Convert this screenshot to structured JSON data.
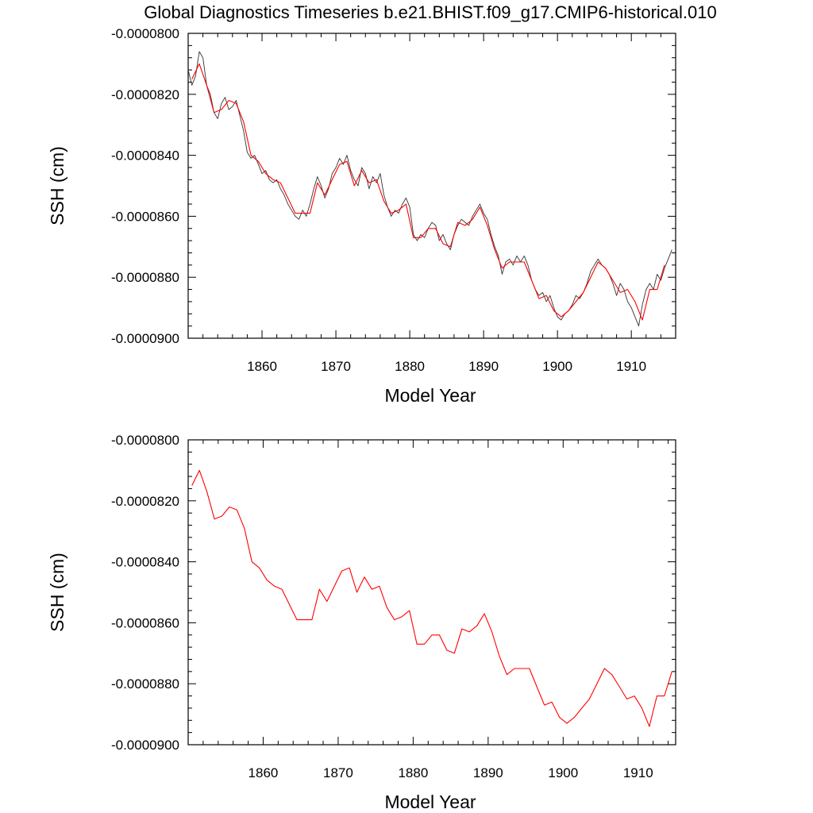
{
  "title": "Global Diagnostics Timeseries b.e21.BHIST.f09_g17.CMIP6-historical.010",
  "colors": {
    "monthly": "#333333",
    "annual": "#ff0000",
    "frame": "#000000"
  },
  "chart_data": [
    {
      "type": "line",
      "xlabel": "Model Year",
      "ylabel": "SSH (cm)",
      "xlim": [
        1850,
        1916
      ],
      "ylim": [
        -9e-05,
        -8e-05
      ],
      "x_ticks": [
        1860,
        1870,
        1880,
        1890,
        1900,
        1910
      ],
      "x_tick_labels": [
        "1860",
        "1870",
        "1880",
        "1890",
        "1900",
        "1910"
      ],
      "y_ticks": [
        -8e-05,
        -8.2e-05,
        -8.4e-05,
        -8.6e-05,
        -8.8e-05,
        -9e-05
      ],
      "y_tick_labels": [
        "-0.0000800",
        "-0.0000820",
        "-0.0000840",
        "-0.0000860",
        "-0.0000880",
        "-0.0000900"
      ],
      "grid": false,
      "series": [
        {
          "role": "monthly",
          "color": "#333333",
          "x": [
            1850.0,
            1850.5,
            1851.0,
            1851.5,
            1852.0,
            1852.5,
            1853.0,
            1853.5,
            1854.0,
            1854.5,
            1855.0,
            1855.5,
            1856.0,
            1856.5,
            1857.0,
            1857.5,
            1858.0,
            1858.5,
            1859.0,
            1859.5,
            1860.0,
            1860.5,
            1861.0,
            1861.5,
            1862.0,
            1862.5,
            1863.0,
            1863.5,
            1864.0,
            1864.5,
            1865.0,
            1865.5,
            1866.0,
            1866.5,
            1867.0,
            1867.5,
            1868.0,
            1868.5,
            1869.0,
            1869.5,
            1870.0,
            1870.5,
            1871.0,
            1871.5,
            1872.0,
            1872.5,
            1873.0,
            1873.5,
            1874.0,
            1874.5,
            1875.0,
            1875.5,
            1876.0,
            1876.5,
            1877.0,
            1877.5,
            1878.0,
            1878.5,
            1879.0,
            1879.5,
            1880.0,
            1880.5,
            1881.0,
            1881.5,
            1882.0,
            1882.5,
            1883.0,
            1883.5,
            1884.0,
            1884.5,
            1885.0,
            1885.5,
            1886.0,
            1886.5,
            1887.0,
            1887.5,
            1888.0,
            1888.5,
            1889.0,
            1889.5,
            1890.0,
            1890.5,
            1891.0,
            1891.5,
            1892.0,
            1892.5,
            1893.0,
            1893.5,
            1894.0,
            1894.5,
            1895.0,
            1895.5,
            1896.0,
            1896.5,
            1897.0,
            1897.5,
            1898.0,
            1898.5,
            1899.0,
            1899.5,
            1900.0,
            1900.5,
            1901.0,
            1901.5,
            1902.0,
            1902.5,
            1903.0,
            1903.5,
            1904.0,
            1904.5,
            1905.0,
            1905.5,
            1906.0,
            1906.5,
            1907.0,
            1907.5,
            1908.0,
            1908.5,
            1909.0,
            1909.5,
            1910.0,
            1910.5,
            1911.0,
            1911.5,
            1912.0,
            1912.5,
            1913.0,
            1913.5,
            1914.0,
            1914.5,
            1915.0,
            1915.5
          ],
          "values": [
            -8.12e-05,
            -8.17e-05,
            -8.14e-05,
            -8.06e-05,
            -8.08e-05,
            -8.17e-05,
            -8.2e-05,
            -8.26e-05,
            -8.28e-05,
            -8.23e-05,
            -8.21e-05,
            -8.25e-05,
            -8.24e-05,
            -8.22e-05,
            -8.27e-05,
            -8.32e-05,
            -8.39e-05,
            -8.41e-05,
            -8.4e-05,
            -8.43e-05,
            -8.46e-05,
            -8.45e-05,
            -8.48e-05,
            -8.49e-05,
            -8.48e-05,
            -8.51e-05,
            -8.53e-05,
            -8.56e-05,
            -8.58e-05,
            -8.6e-05,
            -8.61e-05,
            -8.58e-05,
            -8.6e-05,
            -8.56e-05,
            -8.51e-05,
            -8.47e-05,
            -8.5e-05,
            -8.54e-05,
            -8.51e-05,
            -8.46e-05,
            -8.44e-05,
            -8.41e-05,
            -8.43e-05,
            -8.4e-05,
            -8.45e-05,
            -8.48e-05,
            -8.5e-05,
            -8.44e-05,
            -8.46e-05,
            -8.51e-05,
            -8.47e-05,
            -8.49e-05,
            -8.46e-05,
            -8.53e-05,
            -8.57e-05,
            -8.6e-05,
            -8.58e-05,
            -8.59e-05,
            -8.56e-05,
            -8.54e-05,
            -8.57e-05,
            -8.66e-05,
            -8.68e-05,
            -8.66e-05,
            -8.67e-05,
            -8.64e-05,
            -8.62e-05,
            -8.63e-05,
            -8.68e-05,
            -8.66e-05,
            -8.69e-05,
            -8.71e-05,
            -8.66e-05,
            -8.63e-05,
            -8.61e-05,
            -8.62e-05,
            -8.63e-05,
            -8.6e-05,
            -8.58e-05,
            -8.56e-05,
            -8.59e-05,
            -8.61e-05,
            -8.66e-05,
            -8.7e-05,
            -8.73e-05,
            -8.79e-05,
            -8.75e-05,
            -8.74e-05,
            -8.76e-05,
            -8.73e-05,
            -8.75e-05,
            -8.73e-05,
            -8.76e-05,
            -8.81e-05,
            -8.84e-05,
            -8.86e-05,
            -8.85e-05,
            -8.88e-05,
            -8.86e-05,
            -8.9e-05,
            -8.93e-05,
            -8.94e-05,
            -8.92e-05,
            -8.91e-05,
            -8.89e-05,
            -8.86e-05,
            -8.87e-05,
            -8.85e-05,
            -8.82e-05,
            -8.78e-05,
            -8.76e-05,
            -8.74e-05,
            -8.76e-05,
            -8.77e-05,
            -8.79e-05,
            -8.82e-05,
            -8.86e-05,
            -8.82e-05,
            -8.84e-05,
            -8.88e-05,
            -8.9e-05,
            -8.93e-05,
            -8.96e-05,
            -8.89e-05,
            -8.84e-05,
            -8.82e-05,
            -8.84e-05,
            -8.79e-05,
            -8.81e-05,
            -8.77e-05,
            -8.74e-05,
            -8.71e-05
          ]
        },
        {
          "role": "annual",
          "color": "#ff0000",
          "x": [
            1850.5,
            1851.5,
            1852.5,
            1853.5,
            1854.5,
            1855.5,
            1856.5,
            1857.5,
            1858.5,
            1859.5,
            1860.5,
            1861.5,
            1862.5,
            1863.5,
            1864.5,
            1865.5,
            1866.5,
            1867.5,
            1868.5,
            1869.5,
            1870.5,
            1871.5,
            1872.5,
            1873.5,
            1874.5,
            1875.5,
            1876.5,
            1877.5,
            1878.5,
            1879.5,
            1880.5,
            1881.5,
            1882.5,
            1883.5,
            1884.5,
            1885.5,
            1886.5,
            1887.5,
            1888.5,
            1889.5,
            1890.5,
            1891.5,
            1892.5,
            1893.5,
            1894.5,
            1895.5,
            1896.5,
            1897.5,
            1898.5,
            1899.5,
            1900.5,
            1901.5,
            1902.5,
            1903.5,
            1904.5,
            1905.5,
            1906.5,
            1907.5,
            1908.5,
            1909.5,
            1910.5,
            1911.5,
            1912.5,
            1913.5,
            1914.5
          ],
          "values": [
            -8.15e-05,
            -8.1e-05,
            -8.17e-05,
            -8.26e-05,
            -8.25e-05,
            -8.22e-05,
            -8.23e-05,
            -8.29e-05,
            -8.4e-05,
            -8.42e-05,
            -8.46e-05,
            -8.48e-05,
            -8.49e-05,
            -8.54e-05,
            -8.59e-05,
            -8.59e-05,
            -8.59e-05,
            -8.49e-05,
            -8.53e-05,
            -8.48e-05,
            -8.43e-05,
            -8.42e-05,
            -8.5e-05,
            -8.45e-05,
            -8.49e-05,
            -8.48e-05,
            -8.55e-05,
            -8.59e-05,
            -8.58e-05,
            -8.56e-05,
            -8.67e-05,
            -8.67e-05,
            -8.64e-05,
            -8.64e-05,
            -8.69e-05,
            -8.7e-05,
            -8.62e-05,
            -8.63e-05,
            -8.61e-05,
            -8.57e-05,
            -8.63e-05,
            -8.71e-05,
            -8.77e-05,
            -8.75e-05,
            -8.75e-05,
            -8.75e-05,
            -8.81e-05,
            -8.87e-05,
            -8.86e-05,
            -8.91e-05,
            -8.93e-05,
            -8.91e-05,
            -8.88e-05,
            -8.85e-05,
            -8.8e-05,
            -8.75e-05,
            -8.77e-05,
            -8.81e-05,
            -8.85e-05,
            -8.84e-05,
            -8.88e-05,
            -8.94e-05,
            -8.84e-05,
            -8.84e-05,
            -8.76e-05
          ]
        }
      ]
    },
    {
      "type": "line",
      "xlabel": "Model Year",
      "ylabel": "SSH (cm)",
      "xlim": [
        1850,
        1915
      ],
      "ylim": [
        -9e-05,
        -8e-05
      ],
      "x_ticks": [
        1860,
        1870,
        1880,
        1890,
        1900,
        1910
      ],
      "x_tick_labels": [
        "1860",
        "1870",
        "1880",
        "1890",
        "1900",
        "1910"
      ],
      "y_ticks": [
        -8e-05,
        -8.2e-05,
        -8.4e-05,
        -8.6e-05,
        -8.8e-05,
        -9e-05
      ],
      "y_tick_labels": [
        "-0.0000800",
        "-0.0000820",
        "-0.0000840",
        "-0.0000860",
        "-0.0000880",
        "-0.0000900"
      ],
      "grid": false,
      "series": [
        {
          "role": "annual",
          "color": "#ff0000",
          "x": [
            1850.5,
            1851.5,
            1852.5,
            1853.5,
            1854.5,
            1855.5,
            1856.5,
            1857.5,
            1858.5,
            1859.5,
            1860.5,
            1861.5,
            1862.5,
            1863.5,
            1864.5,
            1865.5,
            1866.5,
            1867.5,
            1868.5,
            1869.5,
            1870.5,
            1871.5,
            1872.5,
            1873.5,
            1874.5,
            1875.5,
            1876.5,
            1877.5,
            1878.5,
            1879.5,
            1880.5,
            1881.5,
            1882.5,
            1883.5,
            1884.5,
            1885.5,
            1886.5,
            1887.5,
            1888.5,
            1889.5,
            1890.5,
            1891.5,
            1892.5,
            1893.5,
            1894.5,
            1895.5,
            1896.5,
            1897.5,
            1898.5,
            1899.5,
            1900.5,
            1901.5,
            1902.5,
            1903.5,
            1904.5,
            1905.5,
            1906.5,
            1907.5,
            1908.5,
            1909.5,
            1910.5,
            1911.5,
            1912.5,
            1913.5,
            1914.5
          ],
          "values": [
            -8.15e-05,
            -8.1e-05,
            -8.17e-05,
            -8.26e-05,
            -8.25e-05,
            -8.22e-05,
            -8.23e-05,
            -8.29e-05,
            -8.4e-05,
            -8.42e-05,
            -8.46e-05,
            -8.48e-05,
            -8.49e-05,
            -8.54e-05,
            -8.59e-05,
            -8.59e-05,
            -8.59e-05,
            -8.49e-05,
            -8.53e-05,
            -8.48e-05,
            -8.43e-05,
            -8.42e-05,
            -8.5e-05,
            -8.45e-05,
            -8.49e-05,
            -8.48e-05,
            -8.55e-05,
            -8.59e-05,
            -8.58e-05,
            -8.56e-05,
            -8.67e-05,
            -8.67e-05,
            -8.64e-05,
            -8.64e-05,
            -8.69e-05,
            -8.7e-05,
            -8.62e-05,
            -8.63e-05,
            -8.61e-05,
            -8.57e-05,
            -8.63e-05,
            -8.71e-05,
            -8.77e-05,
            -8.75e-05,
            -8.75e-05,
            -8.75e-05,
            -8.81e-05,
            -8.87e-05,
            -8.86e-05,
            -8.91e-05,
            -8.93e-05,
            -8.91e-05,
            -8.88e-05,
            -8.85e-05,
            -8.8e-05,
            -8.75e-05,
            -8.77e-05,
            -8.81e-05,
            -8.85e-05,
            -8.84e-05,
            -8.88e-05,
            -8.94e-05,
            -8.84e-05,
            -8.84e-05,
            -8.76e-05
          ]
        }
      ]
    }
  ]
}
